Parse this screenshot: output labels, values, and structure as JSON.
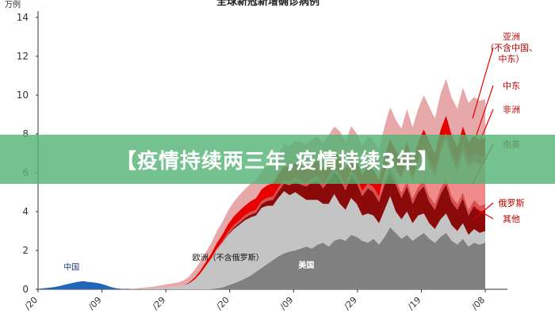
{
  "chart_data": {
    "type": "area",
    "title": "全球新冠新增确诊病例",
    "ylabel": "万例",
    "ylim": [
      0,
      14
    ],
    "yticks": [
      "0",
      "2",
      "4",
      "6",
      "8",
      "10",
      "12",
      "14"
    ],
    "x_tick_labels": [
      "/20",
      "/09",
      "/29",
      "/20",
      "/09",
      "/29",
      "/19",
      "/08"
    ],
    "stacked": true,
    "x": [
      0,
      1,
      2,
      3,
      4,
      5,
      6,
      7,
      8,
      9,
      10,
      11,
      12,
      13,
      14,
      15,
      16,
      17,
      18,
      19,
      20,
      21,
      22,
      23,
      24,
      25,
      26,
      27,
      28,
      29,
      30,
      31,
      32,
      33,
      34,
      35,
      36,
      37,
      38,
      39,
      40,
      41,
      42,
      43,
      44,
      45,
      46,
      47,
      48,
      49,
      50,
      51,
      52,
      53,
      54,
      55,
      56,
      57,
      58,
      59,
      60,
      61,
      62,
      63,
      64,
      65,
      66,
      67,
      68,
      69,
      70,
      71,
      72,
      73,
      74,
      75,
      76,
      77,
      78,
      79,
      80
    ],
    "series": [
      {
        "name": "中国",
        "color": "#2166b8",
        "values": [
          0.02,
          0.05,
          0.08,
          0.12,
          0.18,
          0.25,
          0.32,
          0.38,
          0.42,
          0.38,
          0.35,
          0.3,
          0.22,
          0.12,
          0.05,
          0.02,
          0.01,
          0,
          0,
          0,
          0,
          0,
          0,
          0,
          0,
          0,
          0,
          0,
          0,
          0,
          0,
          0,
          0,
          0,
          0,
          0,
          0,
          0,
          0,
          0,
          0,
          0,
          0,
          0,
          0,
          0,
          0,
          0,
          0,
          0,
          0,
          0,
          0,
          0,
          0,
          0,
          0,
          0,
          0,
          0,
          0,
          0,
          0,
          0,
          0,
          0,
          0,
          0,
          0,
          0,
          0,
          0,
          0,
          0,
          0,
          0,
          0,
          0,
          0,
          0,
          0
        ]
      },
      {
        "name": "美国",
        "color": "#808080",
        "values": [
          0,
          0,
          0,
          0,
          0,
          0,
          0,
          0,
          0,
          0,
          0,
          0,
          0,
          0,
          0,
          0,
          0,
          0,
          0,
          0,
          0,
          0,
          0,
          0,
          0,
          0,
          0,
          0,
          0,
          0,
          0,
          0,
          0.05,
          0.1,
          0.2,
          0.3,
          0.42,
          0.55,
          0.7,
          0.9,
          1.1,
          1.3,
          1.5,
          1.7,
          1.85,
          1.95,
          2.0,
          2.1,
          2.2,
          2.1,
          2.3,
          2.4,
          2.2,
          2.5,
          2.6,
          2.5,
          2.8,
          2.7,
          2.5,
          2.4,
          2.6,
          2.3,
          2.7,
          3.2,
          2.9,
          2.6,
          2.8,
          2.5,
          2.7,
          2.9,
          2.6,
          2.4,
          2.7,
          2.9,
          2.5,
          2.3,
          2.6,
          2.2,
          2.4,
          2.3,
          2.4
        ]
      },
      {
        "name": "欧洲（不含俄罗斯）",
        "color": "#c4c4c4",
        "values": [
          0,
          0,
          0,
          0,
          0,
          0,
          0,
          0,
          0,
          0,
          0,
          0,
          0,
          0,
          0,
          0,
          0,
          0,
          0.01,
          0.02,
          0.03,
          0.05,
          0.08,
          0.1,
          0.12,
          0.15,
          0.2,
          0.3,
          0.5,
          0.8,
          1.2,
          1.6,
          2.0,
          2.3,
          2.6,
          2.8,
          2.9,
          3.0,
          3.0,
          2.9,
          3.1,
          3.0,
          2.8,
          3.0,
          3.2,
          2.9,
          3.0,
          2.7,
          2.4,
          2.5,
          2.3,
          2.0,
          2.2,
          2.4,
          1.8,
          1.6,
          1.9,
          1.7,
          1.3,
          1.5,
          1.2,
          1.1,
          1.4,
          1.6,
          1.1,
          1.0,
          1.2,
          0.9,
          1.1,
          1.0,
          0.8,
          0.7,
          0.9,
          1.0,
          0.8,
          0.7,
          0.8,
          0.6,
          0.7,
          0.6,
          0.6
        ]
      },
      {
        "name": "俄罗斯",
        "color": "#8b0a0a",
        "values": [
          0,
          0,
          0,
          0,
          0,
          0,
          0,
          0,
          0,
          0,
          0,
          0,
          0,
          0,
          0,
          0,
          0,
          0,
          0,
          0,
          0,
          0,
          0,
          0,
          0,
          0,
          0,
          0,
          0,
          0,
          0,
          0,
          0,
          0,
          0.05,
          0.08,
          0.1,
          0.12,
          0.14,
          0.15,
          0.2,
          0.25,
          0.3,
          0.35,
          0.4,
          0.5,
          0.55,
          0.6,
          0.7,
          0.9,
          1.0,
          0.8,
          1.2,
          1.1,
          1.3,
          1.0,
          1.2,
          1.1,
          1.0,
          1.3,
          1.2,
          1.1,
          1.3,
          1.2,
          1.4,
          1.1,
          1.3,
          1.0,
          1.2,
          1.4,
          1.1,
          1.0,
          1.3,
          1.5,
          1.2,
          1.1,
          1.3,
          1.0,
          1.2,
          1.1,
          1.1
        ]
      },
      {
        "name": "其他",
        "color": "#d85050",
        "values": [
          0,
          0,
          0,
          0,
          0,
          0,
          0,
          0,
          0,
          0,
          0,
          0,
          0,
          0,
          0,
          0,
          0,
          0,
          0,
          0,
          0,
          0,
          0,
          0,
          0,
          0,
          0,
          0,
          0,
          0,
          0,
          0,
          0.05,
          0.08,
          0.1,
          0.12,
          0.12,
          0.14,
          0.14,
          0.15,
          0.15,
          0.16,
          0.17,
          0.17,
          0.18,
          0.18,
          0.19,
          0.2,
          0.2,
          0.21,
          0.22,
          0.22,
          0.23,
          0.23,
          0.24,
          0.24,
          0.25,
          0.25,
          0.25,
          0.26,
          0.26,
          0.27,
          0.27,
          0.27,
          0.28,
          0.28,
          0.28,
          0.29,
          0.29,
          0.29,
          0.3,
          0.3,
          0.3,
          0.3,
          0.3,
          0.3,
          0.3,
          0.3,
          0.3,
          0.3,
          0.3
        ]
      },
      {
        "name": "南美",
        "color": "#f08a8a",
        "values": [
          0,
          0,
          0,
          0,
          0,
          0,
          0,
          0,
          0,
          0,
          0,
          0,
          0,
          0,
          0,
          0,
          0,
          0,
          0,
          0,
          0,
          0,
          0,
          0,
          0,
          0,
          0,
          0,
          0,
          0,
          0,
          0,
          0,
          0,
          0,
          0,
          0,
          0,
          0,
          0,
          0,
          0,
          0,
          0,
          0,
          0,
          0,
          0,
          0,
          0,
          0,
          0,
          0,
          0,
          0,
          0,
          0,
          0,
          0,
          0,
          0,
          0,
          0.3,
          0.6,
          0.5,
          0.7,
          1.0,
          0.9,
          1.2,
          1.5,
          1.6,
          1.4,
          1.8,
          2.0,
          1.9,
          1.7,
          2.1,
          2.2,
          2.0,
          2.1,
          2.1
        ]
      },
      {
        "name": "非洲",
        "color": "#ff3030",
        "values": [
          0,
          0,
          0,
          0,
          0,
          0,
          0,
          0,
          0,
          0,
          0,
          0,
          0,
          0,
          0,
          0,
          0,
          0,
          0,
          0,
          0,
          0,
          0,
          0,
          0,
          0,
          0,
          0,
          0,
          0,
          0,
          0,
          0,
          0,
          0,
          0,
          0,
          0,
          0,
          0,
          0,
          0,
          0,
          0,
          0,
          0,
          0,
          0,
          0,
          0,
          0,
          0,
          0,
          0,
          0,
          0,
          0,
          0,
          0,
          0,
          0,
          0,
          0,
          0,
          0.05,
          0.1,
          0.15,
          0.15,
          0.2,
          0.25,
          0.3,
          0.3,
          0.3,
          0.35,
          0.35,
          0.35,
          0.4,
          0.4,
          0.4,
          0.4,
          0.4
        ]
      },
      {
        "name": "中东",
        "color": "#e60000",
        "values": [
          0,
          0,
          0,
          0,
          0,
          0,
          0,
          0,
          0,
          0,
          0,
          0,
          0,
          0,
          0,
          0,
          0,
          0,
          0,
          0,
          0,
          0,
          0,
          0,
          0,
          0,
          0,
          0.05,
          0.1,
          0.15,
          0.2,
          0.25,
          0.3,
          0.35,
          0.4,
          0.45,
          0.5,
          0.5,
          0.55,
          0.6,
          0.6,
          0.65,
          0.7,
          0.7,
          0.72,
          0.75,
          0.75,
          0.78,
          0.8,
          0.8,
          0.8,
          0.8,
          0.82,
          0.85,
          0.85,
          0.85,
          0.85,
          0.88,
          0.88,
          0.9,
          0.9,
          0.9,
          0.9,
          0.9,
          0.9,
          0.9,
          0.9,
          0.9,
          0.9,
          0.9,
          0.9,
          0.9,
          0.9,
          0.9,
          0.9,
          0.9,
          0.9,
          0.9,
          0.9,
          0.9,
          0.9
        ]
      },
      {
        "name": "亚洲（不含中国、中东）",
        "color": "#e6a8a8",
        "values": [
          0,
          0,
          0,
          0,
          0,
          0,
          0,
          0,
          0,
          0,
          0,
          0,
          0,
          0,
          0,
          0,
          0,
          0.02,
          0.04,
          0.06,
          0.08,
          0.1,
          0.12,
          0.15,
          0.18,
          0.2,
          0.25,
          0.3,
          0.4,
          0.45,
          0.5,
          0.55,
          0.6,
          0.65,
          0.7,
          0.75,
          0.8,
          0.85,
          0.9,
          0.9,
          0.95,
          1.0,
          1.0,
          1.05,
          1.1,
          1.1,
          1.15,
          1.2,
          1.2,
          1.2,
          1.25,
          1.3,
          1.3,
          1.3,
          1.35,
          1.4,
          1.4,
          1.4,
          1.45,
          1.5,
          1.5,
          1.5,
          1.55,
          1.6,
          1.6,
          1.6,
          1.65,
          1.7,
          1.7,
          1.75,
          1.8,
          1.8,
          1.85,
          1.9,
          1.9,
          1.95,
          2.0,
          2.0,
          2.0,
          2.0,
          2.0
        ]
      }
    ],
    "annotations": [
      {
        "text": "中国",
        "series": "中国"
      },
      {
        "text": "欧洲（不含俄罗斯）",
        "series": "欧洲（不含俄罗斯）"
      },
      {
        "text": "美国",
        "series": "美国"
      }
    ],
    "legend": [
      {
        "text": "亚洲\n（不含中国、\n中东）",
        "series": "亚洲（不含中国、中东）"
      },
      {
        "text": "中东",
        "series": "中东"
      },
      {
        "text": "非洲",
        "series": "非洲"
      },
      {
        "text": "南美",
        "series": "南美"
      },
      {
        "text": "俄罗斯",
        "series": "俄罗斯"
      },
      {
        "text": "其他",
        "series": "其他"
      }
    ],
    "legend_position": "right"
  },
  "banner": {
    "text": "【疫情持续两三年,疫情持续3年】"
  }
}
